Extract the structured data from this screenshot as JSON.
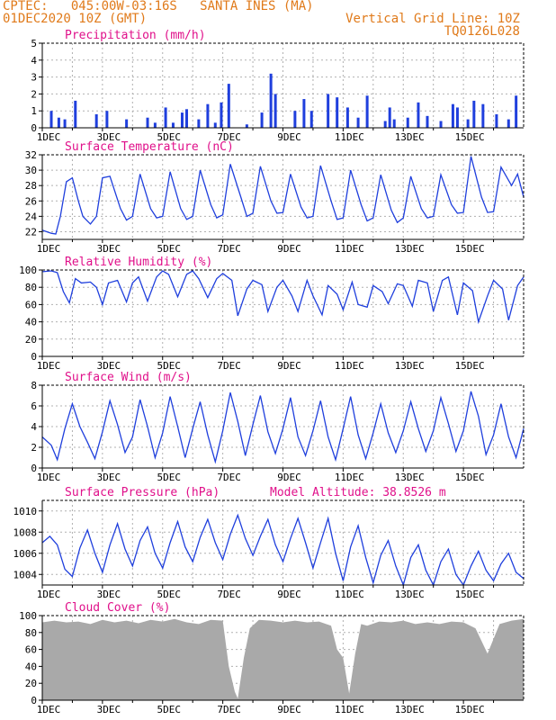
{
  "header": {
    "line1": "CPTEC:   045:00W-03:16S   SANTA INES (MA)",
    "line2": "01DEC2020 10Z (GMT)",
    "grid_note": "Vertical Grid Line: 10Z",
    "code": "TQ0126L028"
  },
  "colors": {
    "header_text": "#e07a1a",
    "panel_title": "#e0108a",
    "series": "#1f3fdd",
    "cloud_fill": "#a9a9a9",
    "grid": "#b0b0b0"
  },
  "chart_data": [
    {
      "type": "bar",
      "title": "Precipitation (mm/h)",
      "ylim": [
        0,
        5
      ],
      "yticks": [
        0,
        1,
        2,
        3,
        4,
        5
      ],
      "xticks": [
        "1DEC",
        "3DEC",
        "5DEC",
        "7DEC",
        "9DEC",
        "11DEC",
        "13DEC",
        "15DEC"
      ],
      "grid": true,
      "x": [
        0.3,
        0.55,
        0.75,
        1.1,
        1.8,
        2.15,
        2.8,
        3.5,
        3.75,
        4.1,
        4.35,
        4.65,
        4.8,
        5.2,
        5.5,
        5.75,
        5.95,
        6.2,
        6.8,
        7.3,
        7.6,
        7.75,
        8.4,
        8.7,
        8.95,
        9.5,
        9.8,
        10.15,
        10.5,
        10.8,
        11.4,
        11.55,
        11.7,
        12.15,
        12.5,
        12.8,
        13.25,
        13.65,
        13.8,
        14.15,
        14.35,
        14.65,
        15.1,
        15.5,
        15.75
      ],
      "values": [
        1.0,
        0.6,
        0.5,
        1.6,
        0.8,
        1.0,
        0.5,
        0.6,
        0.3,
        1.2,
        0.3,
        0.9,
        1.1,
        0.5,
        1.4,
        0.3,
        1.5,
        2.6,
        0.2,
        0.9,
        3.2,
        2.0,
        1.0,
        1.7,
        1.0,
        2.0,
        1.8,
        1.2,
        0.6,
        1.9,
        0.4,
        1.2,
        0.5,
        0.6,
        1.5,
        0.7,
        0.4,
        1.4,
        1.2,
        0.5,
        1.6,
        1.4,
        0.8,
        0.5,
        1.9
      ]
    },
    {
      "type": "line",
      "title": "Surface Temperature (nC)",
      "ylim": [
        21,
        32
      ],
      "yticks": [
        22,
        24,
        26,
        28,
        30,
        32
      ],
      "xticks": [
        "1DEC",
        "3DEC",
        "5DEC",
        "7DEC",
        "9DEC",
        "11DEC",
        "13DEC",
        "15DEC"
      ],
      "grid": true,
      "x": [
        0,
        0.3,
        0.45,
        0.6,
        0.8,
        1.0,
        1.2,
        1.35,
        1.6,
        1.8,
        2.0,
        2.25,
        2.6,
        2.8,
        3.0,
        3.25,
        3.6,
        3.8,
        4.0,
        4.25,
        4.6,
        4.8,
        5.0,
        5.25,
        5.6,
        5.8,
        6.0,
        6.25,
        6.6,
        6.8,
        7.0,
        7.25,
        7.6,
        7.8,
        8.0,
        8.25,
        8.6,
        8.8,
        9.0,
        9.25,
        9.6,
        9.8,
        10.0,
        10.25,
        10.6,
        10.8,
        11.0,
        11.25,
        11.6,
        11.8,
        12.0,
        12.25,
        12.6,
        12.8,
        13.0,
        13.25,
        13.6,
        13.8,
        14.0,
        14.25,
        14.6,
        14.8,
        15.0,
        15.25,
        15.6,
        15.8,
        16.0
      ],
      "values": [
        22.2,
        21.8,
        21.7,
        24.0,
        28.5,
        29.0,
        26.0,
        24.0,
        23.0,
        24.0,
        29.0,
        29.2,
        25.0,
        23.5,
        24.0,
        29.5,
        25.0,
        23.8,
        24.0,
        29.8,
        25.0,
        23.6,
        24.0,
        30.0,
        25.5,
        23.8,
        24.2,
        30.8,
        26.5,
        24.0,
        24.4,
        30.5,
        26.0,
        24.4,
        24.5,
        29.5,
        25.2,
        23.8,
        24.0,
        30.6,
        26.0,
        23.6,
        23.8,
        30.0,
        25.5,
        23.4,
        23.8,
        29.4,
        24.8,
        23.2,
        23.8,
        29.2,
        25.0,
        23.8,
        24.0,
        29.4,
        25.5,
        24.4,
        24.5,
        31.8,
        26.5,
        24.5,
        24.6,
        30.4,
        28.0,
        29.5,
        26.5
      ]
    },
    {
      "type": "line",
      "title": "Relative Humidity (%)",
      "ylim": [
        0,
        100
      ],
      "yticks": [
        0,
        20,
        40,
        60,
        80,
        100
      ],
      "xticks": [
        "1DEC",
        "3DEC",
        "5DEC",
        "7DEC",
        "9DEC",
        "11DEC",
        "13DEC",
        "15DEC"
      ],
      "grid": true,
      "x": [
        0,
        0.3,
        0.5,
        0.7,
        0.9,
        1.1,
        1.3,
        1.6,
        1.8,
        2.0,
        2.2,
        2.5,
        2.8,
        3.0,
        3.2,
        3.5,
        3.8,
        4.0,
        4.2,
        4.5,
        4.8,
        5.0,
        5.2,
        5.5,
        5.8,
        6.0,
        6.3,
        6.5,
        6.8,
        7.0,
        7.3,
        7.5,
        7.8,
        8.0,
        8.3,
        8.5,
        8.8,
        9.0,
        9.3,
        9.5,
        9.8,
        10.0,
        10.3,
        10.5,
        10.8,
        11.0,
        11.3,
        11.5,
        11.8,
        12.0,
        12.3,
        12.5,
        12.8,
        13.0,
        13.3,
        13.5,
        13.8,
        14.0,
        14.3,
        14.5,
        14.8,
        15.0,
        15.3,
        15.5,
        15.8,
        16.0
      ],
      "values": [
        98,
        99,
        97,
        75,
        62,
        90,
        85,
        86,
        80,
        60,
        85,
        88,
        63,
        85,
        92,
        64,
        92,
        99,
        95,
        69,
        95,
        99,
        90,
        68,
        90,
        96,
        88,
        47,
        78,
        88,
        83,
        52,
        80,
        88,
        70,
        52,
        88,
        70,
        48,
        82,
        72,
        54,
        86,
        60,
        57,
        82,
        75,
        61,
        84,
        82,
        58,
        88,
        85,
        52,
        88,
        92,
        48,
        85,
        76,
        40,
        70,
        88,
        78,
        42,
        82,
        92
      ]
    },
    {
      "type": "line",
      "title": "Surface Wind (m/s)",
      "ylim": [
        0,
        8
      ],
      "yticks": [
        0,
        2,
        4,
        6,
        8
      ],
      "xticks": [
        "1DEC",
        "3DEC",
        "5DEC",
        "7DEC",
        "9DEC",
        "11DEC",
        "13DEC",
        "15DEC"
      ],
      "grid": true,
      "x": [
        0,
        0.3,
        0.5,
        0.75,
        1.0,
        1.25,
        1.5,
        1.75,
        2.0,
        2.25,
        2.5,
        2.75,
        3.0,
        3.25,
        3.5,
        3.75,
        4.0,
        4.25,
        4.5,
        4.75,
        5.0,
        5.25,
        5.5,
        5.75,
        6.0,
        6.25,
        6.5,
        6.75,
        7.0,
        7.25,
        7.5,
        7.75,
        8.0,
        8.25,
        8.5,
        8.75,
        9.0,
        9.25,
        9.5,
        9.75,
        10.0,
        10.25,
        10.5,
        10.75,
        11.0,
        11.25,
        11.5,
        11.75,
        12.0,
        12.25,
        12.5,
        12.75,
        13.0,
        13.25,
        13.5,
        13.75,
        14.0,
        14.25,
        14.5,
        14.75,
        15.0,
        15.25,
        15.5,
        15.75,
        16.0
      ],
      "values": [
        3.0,
        2.2,
        0.8,
        3.8,
        6.2,
        4.0,
        2.5,
        0.9,
        3.5,
        6.5,
        4.2,
        1.5,
        3.0,
        6.6,
        4.0,
        1.0,
        3.4,
        6.9,
        4.0,
        1.0,
        3.8,
        6.4,
        3.2,
        0.6,
        3.6,
        7.3,
        4.5,
        1.2,
        4.2,
        7.0,
        3.5,
        1.4,
        3.8,
        6.8,
        3.0,
        1.2,
        3.6,
        6.5,
        3.0,
        0.8,
        3.8,
        6.9,
        3.2,
        0.9,
        3.4,
        6.2,
        3.4,
        1.5,
        3.6,
        6.4,
        3.8,
        1.6,
        3.6,
        6.8,
        4.3,
        1.6,
        3.6,
        7.4,
        5.0,
        1.3,
        3.2,
        6.2,
        3.0,
        1.0,
        3.8
      ]
    },
    {
      "type": "line",
      "title": "Surface Pressure (hPa)",
      "annotation": "Model Altitude: 38.8526 m",
      "ylim": [
        1003,
        1011
      ],
      "yticks": [
        1004,
        1006,
        1008,
        1010
      ],
      "xticks": [
        "1DEC",
        "3DEC",
        "5DEC",
        "7DEC",
        "9DEC",
        "11DEC",
        "13DEC",
        "15DEC"
      ],
      "grid": true,
      "x": [
        0,
        0.25,
        0.5,
        0.75,
        1.0,
        1.25,
        1.5,
        1.75,
        2.0,
        2.25,
        2.5,
        2.75,
        3.0,
        3.25,
        3.5,
        3.75,
        4.0,
        4.25,
        4.5,
        4.75,
        5.0,
        5.25,
        5.5,
        5.75,
        6.0,
        6.25,
        6.5,
        6.75,
        7.0,
        7.25,
        7.5,
        7.75,
        8.0,
        8.25,
        8.5,
        8.75,
        9.0,
        9.25,
        9.5,
        9.75,
        10.0,
        10.25,
        10.5,
        10.75,
        11.0,
        11.25,
        11.5,
        11.75,
        12.0,
        12.25,
        12.5,
        12.75,
        13.0,
        13.25,
        13.5,
        13.75,
        14.0,
        14.25,
        14.5,
        14.75,
        15.0,
        15.25,
        15.5,
        15.75,
        16.0
      ],
      "values": [
        1007.0,
        1007.6,
        1006.8,
        1004.5,
        1003.8,
        1006.5,
        1008.2,
        1006.0,
        1004.2,
        1006.8,
        1008.8,
        1006.4,
        1004.8,
        1007.2,
        1008.5,
        1006.0,
        1004.6,
        1007.0,
        1009.0,
        1006.6,
        1005.2,
        1007.5,
        1009.2,
        1007.0,
        1005.4,
        1007.8,
        1009.6,
        1007.4,
        1005.8,
        1007.6,
        1009.2,
        1006.8,
        1005.2,
        1007.4,
        1009.3,
        1007.0,
        1004.6,
        1007.0,
        1009.3,
        1006.0,
        1003.4,
        1006.6,
        1008.6,
        1005.6,
        1003.2,
        1005.8,
        1007.2,
        1004.8,
        1003.0,
        1005.6,
        1006.8,
        1004.4,
        1003.0,
        1005.2,
        1006.4,
        1004.0,
        1003.0,
        1004.8,
        1006.2,
        1004.4,
        1003.4,
        1005.0,
        1006.0,
        1004.2,
        1003.6
      ]
    },
    {
      "type": "area",
      "title": "Cloud Cover (%)",
      "ylim": [
        0,
        100
      ],
      "yticks": [
        0,
        20,
        40,
        60,
        80,
        100
      ],
      "xticks": [
        "1DEC",
        "3DEC",
        "5DEC",
        "7DEC",
        "9DEC",
        "11DEC",
        "13DEC",
        "15DEC"
      ],
      "grid": true,
      "x": [
        0,
        0.4,
        0.8,
        1.2,
        1.6,
        2.0,
        2.4,
        2.8,
        3.2,
        3.6,
        4.0,
        4.4,
        4.8,
        5.2,
        5.6,
        6.0,
        6.2,
        6.4,
        6.5,
        6.7,
        6.9,
        7.2,
        7.6,
        8.0,
        8.4,
        8.8,
        9.2,
        9.6,
        9.8,
        10.0,
        10.2,
        10.4,
        10.6,
        10.8,
        11.2,
        11.6,
        12.0,
        12.4,
        12.8,
        13.2,
        13.6,
        14.0,
        14.4,
        14.8,
        15.2,
        15.6,
        16.0
      ],
      "values": [
        92,
        94,
        92,
        93,
        90,
        95,
        92,
        94,
        91,
        95,
        93,
        96,
        92,
        90,
        95,
        94,
        40,
        10,
        2,
        50,
        85,
        95,
        94,
        92,
        94,
        92,
        93,
        88,
        60,
        50,
        8,
        55,
        90,
        88,
        93,
        92,
        94,
        90,
        92,
        90,
        93,
        92,
        85,
        55,
        90,
        94,
        96
      ]
    }
  ]
}
